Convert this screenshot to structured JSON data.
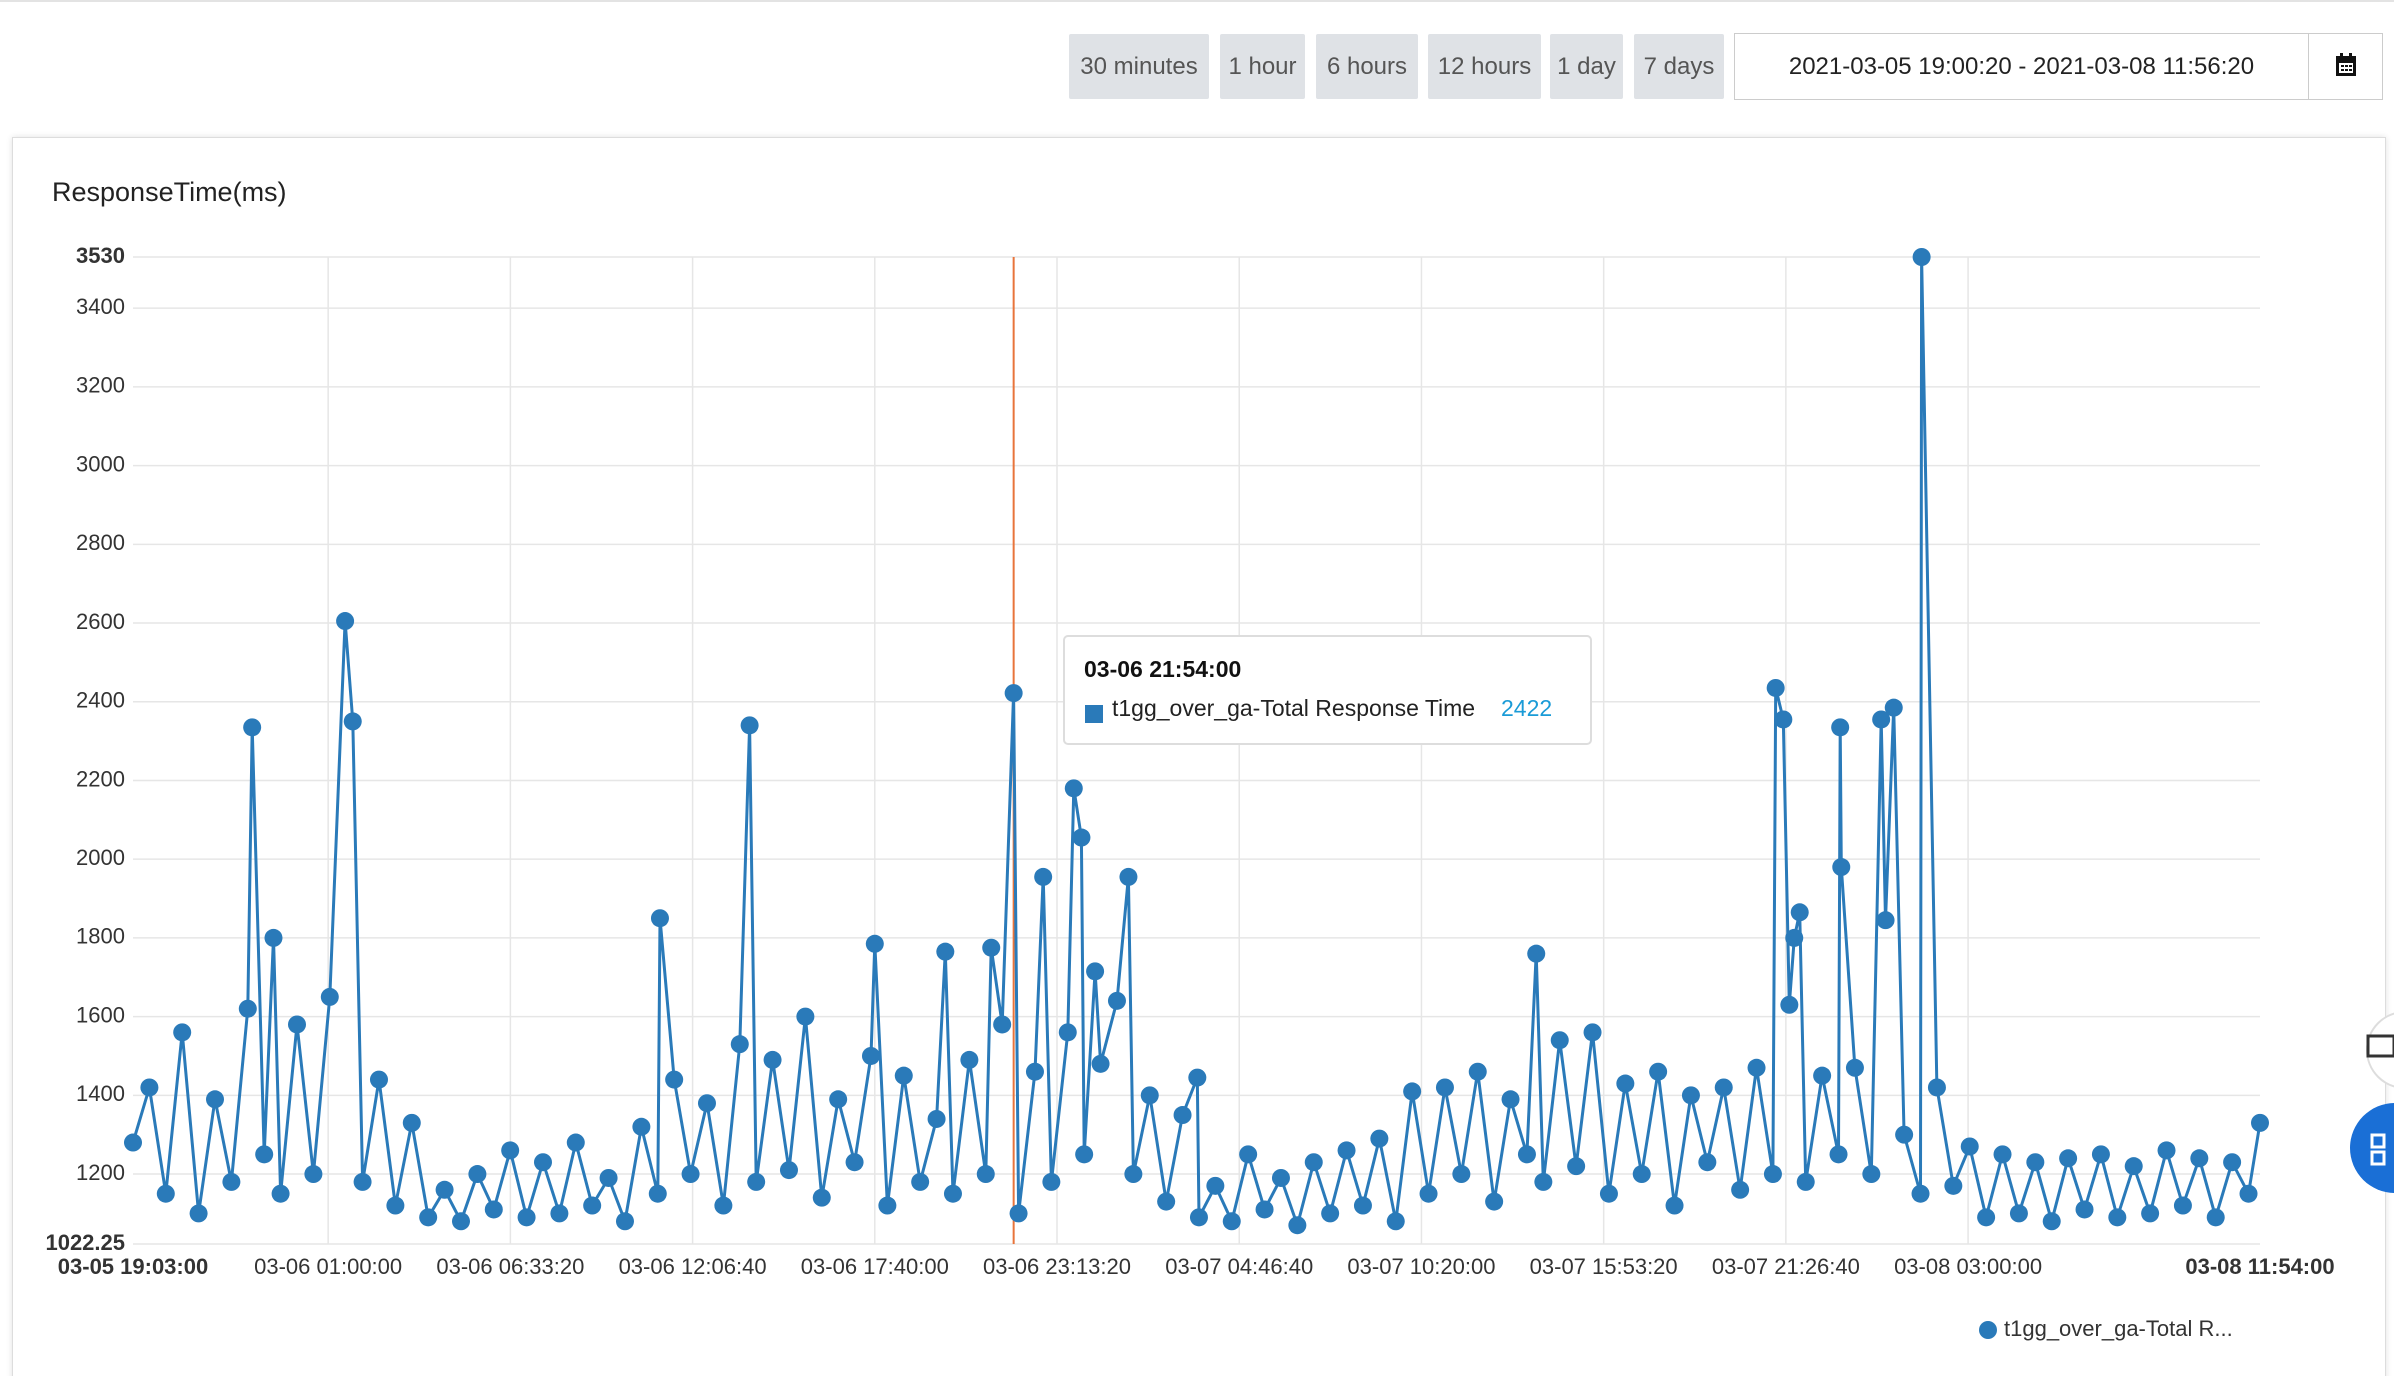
{
  "controls": {
    "buttons": [
      "30 minutes",
      "1 hour",
      "6 hours",
      "12 hours",
      "1 day",
      "7 days"
    ],
    "range": "2021-03-05 19:00:20 - 2021-03-08 11:56:20"
  },
  "chart_data": {
    "type": "line",
    "title": "ResponseTime(ms)",
    "xlim": [
      "03-05 19:03:00",
      "03-08 11:54:00"
    ],
    "xticks": [
      "03-05 19:03:00",
      "03-06 01:00:00",
      "03-06 06:33:20",
      "03-06 12:06:40",
      "03-06 17:40:00",
      "03-06 23:13:20",
      "03-07 04:46:40",
      "03-07 10:20:00",
      "03-07 15:53:20",
      "03-07 21:26:40",
      "03-08 03:00:00",
      "03-08 11:54:00"
    ],
    "ylim": [
      1022.25,
      3530
    ],
    "yticks": [
      1022.25,
      1200,
      1400,
      1600,
      1800,
      2000,
      2200,
      2400,
      2600,
      2800,
      3000,
      3200,
      3400,
      3530
    ],
    "grid": true,
    "legend_label": "t1gg_over_ga-Total R...",
    "tooltip": {
      "title": "03-06 21:54:00",
      "value": 2422
    },
    "series": [
      {
        "name": "t1gg_over_ga-Total Response Time",
        "color": "#2a7ab9",
        "x": [
          "03-05 19:03:00",
          "03-05 19:33:00",
          "03-05 20:03:00",
          "03-05 20:33:00",
          "03-05 21:03:00",
          "03-05 21:33:00",
          "03-05 22:03:00",
          "03-05 22:33:00",
          "03-05 22:41:00",
          "03-05 23:03:00",
          "03-05 23:20:00",
          "03-05 23:33:00",
          "03-06 00:03:00",
          "03-06 00:33:00",
          "03-06 01:03:00",
          "03-06 01:31:00",
          "03-06 01:45:00",
          "03-06 02:03:00",
          "03-06 02:33:00",
          "03-06 03:03:00",
          "03-06 03:33:00",
          "03-06 04:03:00",
          "03-06 04:33:00",
          "03-06 05:03:00",
          "03-06 05:33:00",
          "03-06 06:03:00",
          "03-06 06:33:00",
          "03-06 07:03:00",
          "03-06 07:33:00",
          "03-06 08:03:00",
          "03-06 08:33:00",
          "03-06 09:03:00",
          "03-06 09:33:00",
          "03-06 10:03:00",
          "03-06 10:33:00",
          "03-06 11:03:00",
          "03-06 11:07:00",
          "03-06 11:33:00",
          "03-06 12:03:00",
          "03-06 12:33:00",
          "03-06 13:03:00",
          "03-06 13:33:00",
          "03-06 13:51:00",
          "03-06 14:03:00",
          "03-06 14:33:00",
          "03-06 15:03:00",
          "03-06 15:33:00",
          "03-06 16:03:00",
          "03-06 16:33:00",
          "03-06 17:03:00",
          "03-06 17:33:00",
          "03-06 17:40:00",
          "03-06 18:03:00",
          "03-06 18:33:00",
          "03-06 19:03:00",
          "03-06 19:33:00",
          "03-06 19:49:00",
          "03-06 20:03:00",
          "03-06 20:33:00",
          "03-06 21:03:00",
          "03-06 21:13:00",
          "03-06 21:33:00",
          "03-06 21:54:00",
          "03-06 22:03:00",
          "03-06 22:33:00",
          "03-06 22:48:00",
          "03-06 23:03:00",
          "03-06 23:33:00",
          "03-06 23:44:00",
          "03-06 23:58:00",
          "03-07 00:03:00",
          "03-07 00:23:00",
          "03-07 00:33:00",
          "03-07 01:03:00",
          "03-07 01:24:00",
          "03-07 01:33:00",
          "03-07 02:03:00",
          "03-07 02:33:00",
          "03-07 03:03:00",
          "03-07 03:30:00",
          "03-07 03:33:00",
          "03-07 04:03:00",
          "03-07 04:33:00",
          "03-07 05:03:00",
          "03-07 05:33:00",
          "03-07 06:03:00",
          "03-07 06:33:00",
          "03-07 07:03:00",
          "03-07 07:33:00",
          "03-07 08:03:00",
          "03-07 08:33:00",
          "03-07 09:03:00",
          "03-07 09:33:00",
          "03-07 10:03:00",
          "03-07 10:33:00",
          "03-07 11:03:00",
          "03-07 11:33:00",
          "03-07 12:03:00",
          "03-07 12:33:00",
          "03-07 13:03:00",
          "03-07 13:33:00",
          "03-07 13:50:00",
          "03-07 14:03:00",
          "03-07 14:33:00",
          "03-07 15:03:00",
          "03-07 15:33:00",
          "03-07 16:03:00",
          "03-07 16:33:00",
          "03-07 17:03:00",
          "03-07 17:33:00",
          "03-07 18:03:00",
          "03-07 18:33:00",
          "03-07 19:03:00",
          "03-07 19:33:00",
          "03-07 20:03:00",
          "03-07 20:33:00",
          "03-07 21:03:00",
          "03-07 21:08:00",
          "03-07 21:22:00",
          "03-07 21:33:00",
          "03-07 21:42:00",
          "03-07 21:52:00",
          "03-07 22:03:00",
          "03-07 22:33:00",
          "03-07 23:03:00",
          "03-07 23:06:00",
          "03-07 23:08:00",
          "03-07 23:33:00",
          "03-08 00:03:00",
          "03-08 00:21:00",
          "03-08 00:29:00",
          "03-08 00:44:00",
          "03-08 01:03:00",
          "03-08 01:33:00",
          "03-08 01:35:00",
          "03-08 02:03:00",
          "03-08 02:33:00",
          "03-08 03:03:00",
          "03-08 03:33:00",
          "03-08 04:03:00",
          "03-08 04:33:00",
          "03-08 05:03:00",
          "03-08 05:33:00",
          "03-08 06:03:00",
          "03-08 06:33:00",
          "03-08 07:03:00",
          "03-08 07:33:00",
          "03-08 08:03:00",
          "03-08 08:33:00",
          "03-08 09:03:00",
          "03-08 09:33:00",
          "03-08 10:03:00",
          "03-08 10:33:00",
          "03-08 11:03:00",
          "03-08 11:33:00",
          "03-08 11:54:00"
        ],
        "values": [
          1280,
          1420,
          1150,
          1560,
          1100,
          1390,
          1180,
          1620,
          2335,
          1250,
          1800,
          1150,
          1580,
          1200,
          1650,
          2605,
          2350,
          1180,
          1440,
          1120,
          1330,
          1090,
          1160,
          1080,
          1200,
          1110,
          1260,
          1090,
          1230,
          1100,
          1280,
          1120,
          1190,
          1080,
          1320,
          1150,
          1850,
          1440,
          1200,
          1380,
          1120,
          1530,
          2340,
          1180,
          1490,
          1210,
          1600,
          1140,
          1390,
          1230,
          1500,
          1785,
          1120,
          1450,
          1180,
          1340,
          1765,
          1150,
          1490,
          1200,
          1775,
          1580,
          2422,
          1100,
          1460,
          1955,
          1180,
          1560,
          2180,
          2055,
          1250,
          1715,
          1480,
          1640,
          1955,
          1200,
          1400,
          1130,
          1350,
          1445,
          1090,
          1170,
          1080,
          1250,
          1110,
          1190,
          1070,
          1230,
          1100,
          1260,
          1120,
          1290,
          1080,
          1410,
          1150,
          1420,
          1200,
          1460,
          1130,
          1390,
          1250,
          1760,
          1180,
          1540,
          1220,
          1560,
          1150,
          1430,
          1200,
          1460,
          1120,
          1400,
          1230,
          1420,
          1160,
          1470,
          1200,
          2435,
          2355,
          1630,
          1800,
          1865,
          1180,
          1450,
          1250,
          2335,
          1980,
          1470,
          1200,
          2355,
          1845,
          2385,
          1300,
          1150,
          3530,
          1420,
          1170,
          1270,
          1090,
          1250,
          1100,
          1230,
          1080,
          1240,
          1110,
          1250,
          1090,
          1220,
          1100,
          1260,
          1120,
          1240,
          1090,
          1230,
          1150,
          1330
        ]
      }
    ]
  }
}
